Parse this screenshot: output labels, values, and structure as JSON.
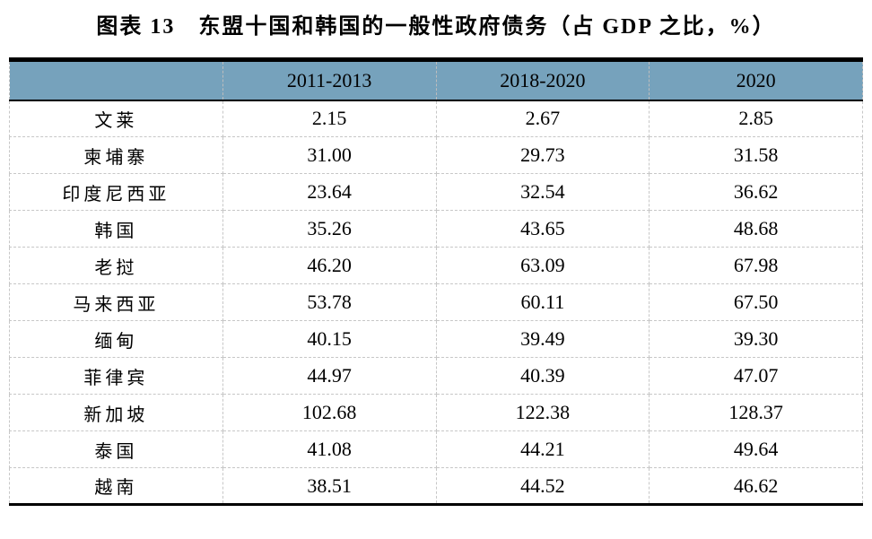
{
  "page_title": "图表 13　东盟十国和韩国的一般性政府债务（占 GDP 之比，%）",
  "colors": {
    "header_bg": "#76a2bc",
    "table_border": "#000000",
    "grid_dashed": "#bdbdbd"
  },
  "table": {
    "columns": [
      "",
      "2011-2013",
      "2018-2020",
      "2020"
    ],
    "rows": [
      {
        "country": "文莱",
        "values": [
          "2.15",
          "2.67",
          "2.85"
        ]
      },
      {
        "country": "柬埔寨",
        "values": [
          "31.00",
          "29.73",
          "31.58"
        ]
      },
      {
        "country": "印度尼西亚",
        "values": [
          "23.64",
          "32.54",
          "36.62"
        ]
      },
      {
        "country": "韩国",
        "values": [
          "35.26",
          "43.65",
          "48.68"
        ]
      },
      {
        "country": "老挝",
        "values": [
          "46.20",
          "63.09",
          "67.98"
        ]
      },
      {
        "country": "马来西亚",
        "values": [
          "53.78",
          "60.11",
          "67.50"
        ]
      },
      {
        "country": "缅甸",
        "values": [
          "40.15",
          "39.49",
          "39.30"
        ]
      },
      {
        "country": "菲律宾",
        "values": [
          "44.97",
          "40.39",
          "47.07"
        ]
      },
      {
        "country": "新加坡",
        "values": [
          "102.68",
          "122.38",
          "128.37"
        ]
      },
      {
        "country": "泰国",
        "values": [
          "41.08",
          "44.21",
          "49.64"
        ]
      },
      {
        "country": "越南",
        "values": [
          "38.51",
          "44.52",
          "46.62"
        ]
      }
    ]
  },
  "chart_data": {
    "type": "table",
    "title": "图表 13　东盟十国和韩国的一般性政府债务（占 GDP 之比，%）",
    "categories": [
      "2011-2013",
      "2018-2020",
      "2020"
    ],
    "series": [
      {
        "name": "文莱",
        "values": [
          2.15,
          2.67,
          2.85
        ]
      },
      {
        "name": "柬埔寨",
        "values": [
          31.0,
          29.73,
          31.58
        ]
      },
      {
        "name": "印度尼西亚",
        "values": [
          23.64,
          32.54,
          36.62
        ]
      },
      {
        "name": "韩国",
        "values": [
          35.26,
          43.65,
          48.68
        ]
      },
      {
        "name": "老挝",
        "values": [
          46.2,
          63.09,
          67.98
        ]
      },
      {
        "name": "马来西亚",
        "values": [
          53.78,
          60.11,
          67.5
        ]
      },
      {
        "name": "缅甸",
        "values": [
          40.15,
          39.49,
          39.3
        ]
      },
      {
        "name": "菲律宾",
        "values": [
          44.97,
          40.39,
          47.07
        ]
      },
      {
        "name": "新加坡",
        "values": [
          102.68,
          122.38,
          128.37
        ]
      },
      {
        "name": "泰国",
        "values": [
          41.08,
          44.21,
          49.64
        ]
      },
      {
        "name": "越南",
        "values": [
          38.51,
          44.52,
          46.62
        ]
      }
    ]
  }
}
